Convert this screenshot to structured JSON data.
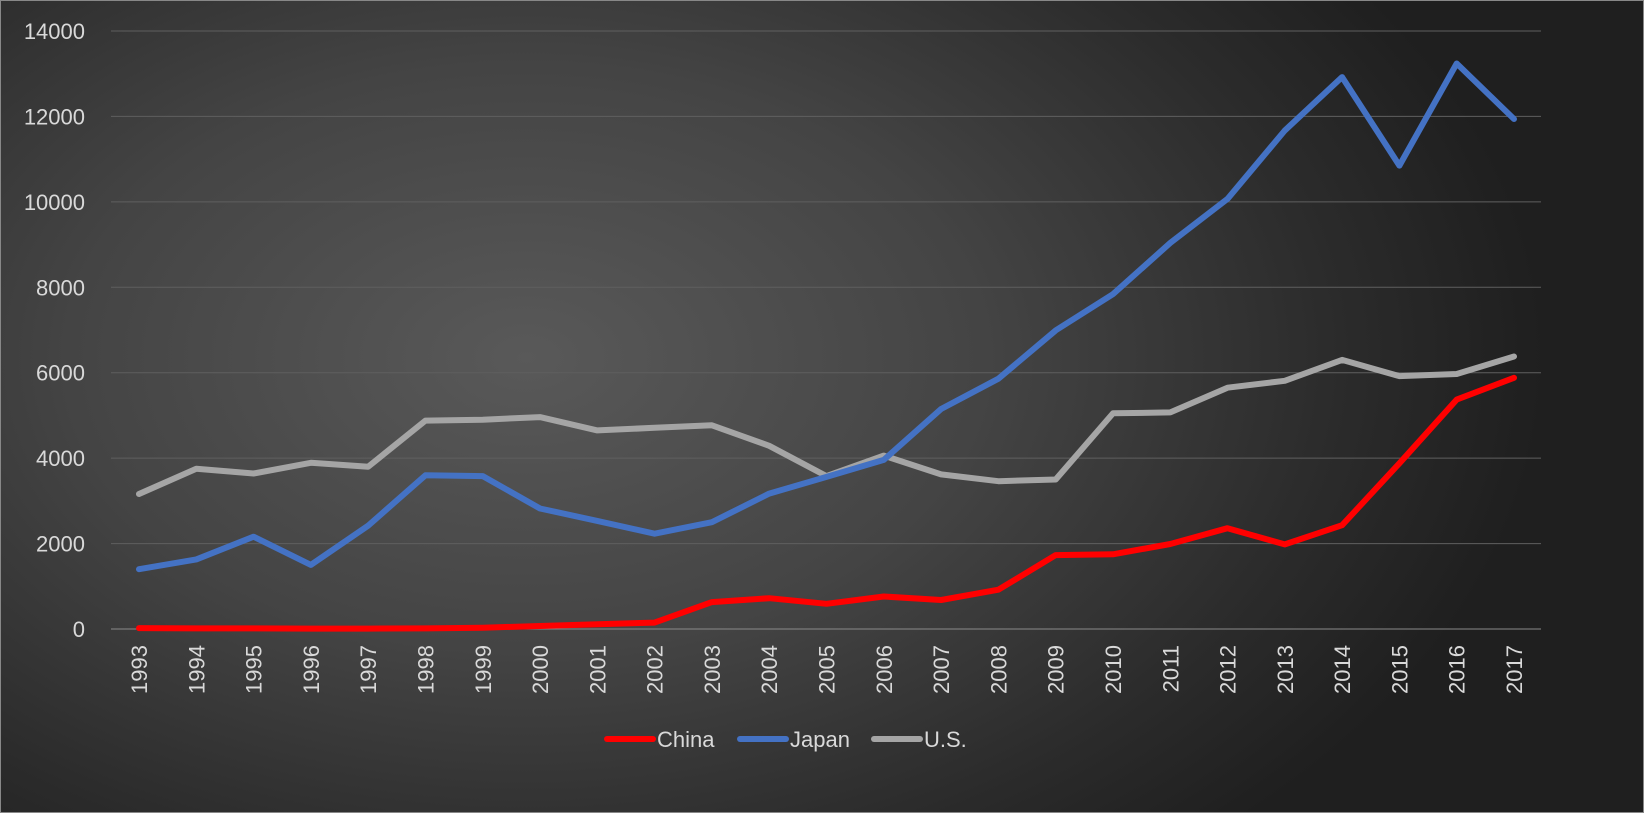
{
  "chart_data": {
    "type": "line",
    "title": "",
    "xlabel": "",
    "ylabel": "",
    "ylim": [
      0,
      14000
    ],
    "yticks": [
      0,
      2000,
      4000,
      6000,
      8000,
      10000,
      12000,
      14000
    ],
    "grid": true,
    "legend_position": "bottom",
    "categories": [
      "1993",
      "1994",
      "1995",
      "1996",
      "1997",
      "1998",
      "1999",
      "2000",
      "2001",
      "2002",
      "2003",
      "2004",
      "2005",
      "2006",
      "2007",
      "2008",
      "2009",
      "2010",
      "2011",
      "2012",
      "2013",
      "2014",
      "2015",
      "2016",
      "2017"
    ],
    "series": [
      {
        "name": "China",
        "color": "#ff0000",
        "values": [
          20,
          15,
          15,
          10,
          10,
          15,
          30,
          70,
          110,
          150,
          630,
          720,
          590,
          760,
          680,
          920,
          1730,
          1750,
          1990,
          2360,
          1980,
          2430,
          3880,
          5370,
          5880
        ]
      },
      {
        "name": "Japan",
        "color": "#4472c4",
        "values": [
          1400,
          1630,
          2160,
          1500,
          2420,
          3600,
          3580,
          2820,
          2530,
          2230,
          2500,
          3170,
          3560,
          3960,
          5150,
          5860,
          6990,
          7840,
          9040,
          10070,
          11670,
          12920,
          10850,
          13240,
          11940
        ]
      },
      {
        "name": "U.S.",
        "color": "#a5a5a5",
        "values": [
          3160,
          3750,
          3640,
          3890,
          3800,
          4880,
          4900,
          4960,
          4650,
          4710,
          4770,
          4290,
          3580,
          4060,
          3620,
          3460,
          3500,
          5050,
          5070,
          5650,
          5810,
          6300,
          5920,
          5970,
          6380
        ]
      }
    ]
  }
}
